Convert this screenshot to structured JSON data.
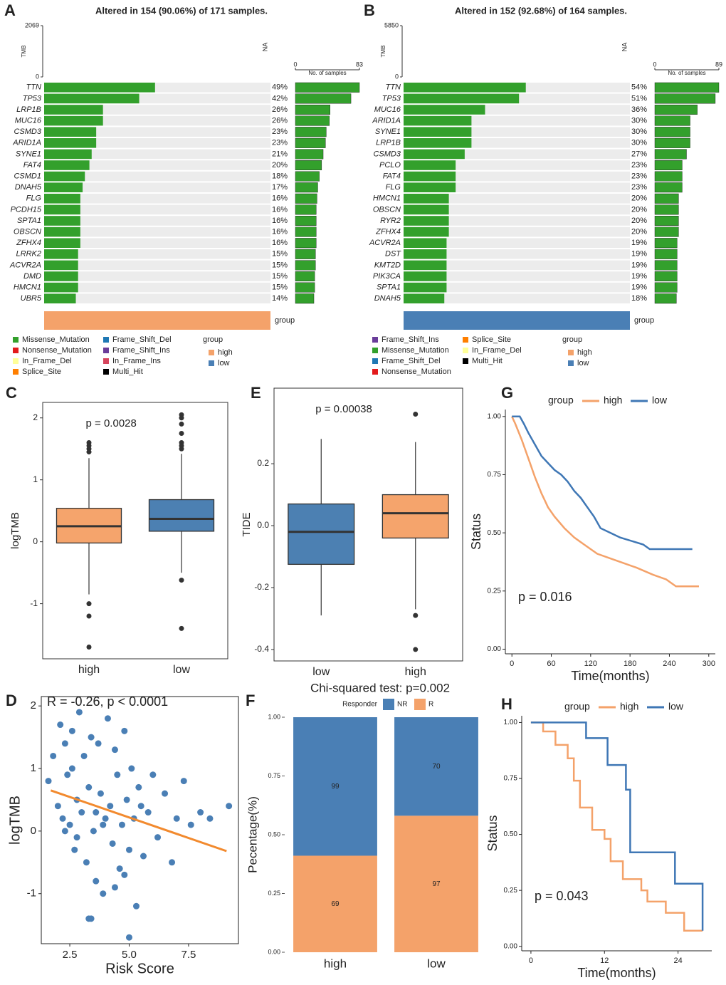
{
  "chart_data": [
    {
      "type": "oncoplot",
      "panel": "A",
      "title": "Altered in 154 (90.06%) of 171 samples.",
      "tmb_label": "TMB",
      "na_label": "NA",
      "ylim": [
        0,
        2069
      ],
      "yticks": [
        0,
        2069
      ],
      "bar_axis_label": "No. of samples",
      "xlim": [
        0,
        83
      ],
      "xticks": [
        0,
        83
      ],
      "genes": [
        "TTN",
        "TP53",
        "LRP1B",
        "MUC16",
        "CSMD3",
        "ARID1A",
        "SYNE1",
        "FAT4",
        "CSMD1",
        "DNAH5",
        "FLG",
        "PCDH15",
        "SPTA1",
        "OBSCN",
        "ZFHX4",
        "LRRK2",
        "ACVR2A",
        "DMD",
        "HMCN1",
        "UBR5"
      ],
      "values": [
        49,
        42,
        26,
        26,
        23,
        23,
        21,
        20,
        18,
        17,
        16,
        16,
        16,
        16,
        16,
        15,
        15,
        15,
        15,
        14
      ],
      "value_labels": [
        "49%",
        "42%",
        "26%",
        "26%",
        "23%",
        "23%",
        "21%",
        "20%",
        "18%",
        "17%",
        "16%",
        "16%",
        "16%",
        "16%",
        "16%",
        "15%",
        "15%",
        "15%",
        "15%",
        "14%"
      ],
      "counts": [
        83,
        72,
        45,
        44,
        40,
        39,
        36,
        34,
        31,
        29,
        28,
        27,
        27,
        27,
        27,
        26,
        26,
        25,
        25,
        24
      ],
      "row_color": "#33a02c",
      "group_bar_label": "group",
      "group_color": "#f4a26a",
      "mutation_legend": [
        {
          "name": "Missense_Mutation",
          "color": "#33a02c"
        },
        {
          "name": "Nonsense_Mutation",
          "color": "#e31a1c"
        },
        {
          "name": "In_Frame_Del",
          "color": "#ffff99"
        },
        {
          "name": "Splice_Site",
          "color": "#ff7f00"
        },
        {
          "name": "Frame_Shift_Del",
          "color": "#1f78b4"
        },
        {
          "name": "Frame_Shift_Ins",
          "color": "#6a3d9a"
        },
        {
          "name": "In_Frame_Ins",
          "color": "#d6455d"
        },
        {
          "name": "Multi_Hit",
          "color": "#000000"
        }
      ],
      "group_legend_title": "group",
      "groups": [
        {
          "name": "high",
          "color": "#f4a26a"
        },
        {
          "name": "low",
          "color": "#4a7fb5"
        }
      ]
    },
    {
      "type": "oncoplot",
      "panel": "B",
      "title": "Altered in 152 (92.68%) of 164 samples.",
      "tmb_label": "TMB",
      "na_label": "NA",
      "ylim": [
        0,
        5850
      ],
      "yticks": [
        0,
        5850
      ],
      "bar_axis_label": "No. of samples",
      "xlim": [
        0,
        89
      ],
      "xticks": [
        0,
        89
      ],
      "genes": [
        "TTN",
        "TP53",
        "MUC16",
        "ARID1A",
        "SYNE1",
        "LRP1B",
        "CSMD3",
        "PCLO",
        "FAT4",
        "FLG",
        "HMCN1",
        "OBSCN",
        "RYR2",
        "ZFHX4",
        "ACVR2A",
        "DST",
        "KMT2D",
        "PIK3CA",
        "SPTA1",
        "DNAH5"
      ],
      "values": [
        54,
        51,
        36,
        30,
        30,
        30,
        27,
        23,
        23,
        23,
        20,
        20,
        20,
        20,
        19,
        19,
        19,
        19,
        19,
        18
      ],
      "value_labels": [
        "54%",
        "51%",
        "36%",
        "30%",
        "30%",
        "30%",
        "27%",
        "23%",
        "23%",
        "23%",
        "20%",
        "20%",
        "20%",
        "20%",
        "19%",
        "19%",
        "19%",
        "19%",
        "19%",
        "18%"
      ],
      "counts": [
        89,
        84,
        59,
        49,
        49,
        49,
        44,
        38,
        38,
        38,
        33,
        33,
        33,
        33,
        31,
        31,
        31,
        31,
        31,
        30
      ],
      "row_color": "#33a02c",
      "group_bar_label": "group",
      "group_color": "#4a7fb5",
      "mutation_legend": [
        {
          "name": "Frame_Shift_Ins",
          "color": "#6a3d9a"
        },
        {
          "name": "Missense_Mutation",
          "color": "#33a02c"
        },
        {
          "name": "Frame_Shift_Del",
          "color": "#1f78b4"
        },
        {
          "name": "Nonsense_Mutation",
          "color": "#e31a1c"
        },
        {
          "name": "Splice_Site",
          "color": "#ff7f00"
        },
        {
          "name": "In_Frame_Del",
          "color": "#ffff99"
        },
        {
          "name": "Multi_Hit",
          "color": "#000000"
        }
      ],
      "group_legend_title": "group",
      "groups": [
        {
          "name": "high",
          "color": "#f4a26a"
        },
        {
          "name": "low",
          "color": "#4a7fb5"
        }
      ]
    },
    {
      "type": "box",
      "panel": "C",
      "annotation": "p = 0.0028",
      "ylabel": "logTMB",
      "categories": [
        "high",
        "low"
      ],
      "colors": [
        "#f5a46c",
        "#4c80b2"
      ],
      "ylim": [
        -1.89,
        2.25
      ],
      "yticks": [
        -1,
        0,
        1,
        2
      ],
      "boxes": [
        {
          "whislo": -0.85,
          "q1": -0.02,
          "med": 0.25,
          "q3": 0.54,
          "whishi": 1.35,
          "fliers": [
            1.6,
            1.55,
            1.5,
            1.45,
            -1.0,
            -1.2,
            -1.7
          ]
        },
        {
          "whislo": -0.5,
          "q1": 0.17,
          "med": 0.37,
          "q3": 0.68,
          "whishi": 1.42,
          "fliers": [
            2.05,
            2.0,
            1.9,
            1.75,
            1.6,
            1.55,
            1.5,
            -0.62,
            -1.4
          ]
        }
      ]
    },
    {
      "type": "box",
      "panel": "E",
      "annotation": "p = 0.00038",
      "ylabel": "TIDE",
      "categories": [
        "low",
        "high"
      ],
      "colors": [
        "#4c80b2",
        "#f5a46c"
      ],
      "ylim": [
        -0.437,
        0.444
      ],
      "yticks": [
        -0.4,
        -0.2,
        {
          "value": 0,
          "label": "0.0"
        },
        0.2
      ],
      "boxes": [
        {
          "whislo": -0.29,
          "q1": -0.125,
          "med": -0.02,
          "q3": 0.07,
          "whishi": 0.28,
          "fliers": []
        },
        {
          "whislo": -0.27,
          "q1": -0.04,
          "med": 0.04,
          "q3": 0.1,
          "whishi": 0.27,
          "fliers": [
            0.36,
            -0.29,
            -0.4
          ]
        }
      ]
    },
    {
      "type": "km",
      "panel": "G",
      "annotation": "p = 0.016",
      "xlabel": "Time(months)",
      "ylabel": "Status",
      "legend_title": "group",
      "xlim": [
        -10,
        310
      ],
      "xticks": [
        0,
        60,
        120,
        180,
        240,
        300
      ],
      "ylim": [
        -0.02,
        1.03
      ],
      "yticks": [
        {
          "value": 0,
          "label": "0.00"
        },
        0.25,
        {
          "value": 0.5,
          "label": "0.50"
        },
        0.75,
        {
          "value": 1,
          "label": "1.00"
        }
      ],
      "series": [
        {
          "name": "high",
          "color": "#f4a26a",
          "x": [
            0,
            5,
            15,
            25,
            35,
            45,
            55,
            65,
            80,
            95,
            110,
            130,
            150,
            170,
            190,
            215,
            235,
            250,
            285
          ],
          "values": [
            1,
            0.97,
            0.9,
            0.82,
            0.74,
            0.67,
            0.61,
            0.57,
            0.52,
            0.48,
            0.45,
            0.41,
            0.39,
            0.37,
            0.35,
            0.32,
            0.3,
            0.27,
            0.27
          ]
        },
        {
          "name": "low",
          "color": "#3f77b5",
          "x": [
            0,
            12,
            18,
            25,
            35,
            45,
            55,
            65,
            75,
            85,
            95,
            105,
            115,
            125,
            135,
            150,
            165,
            200,
            210,
            275
          ],
          "values": [
            1,
            1,
            0.97,
            0.93,
            0.88,
            0.83,
            0.8,
            0.77,
            0.75,
            0.72,
            0.68,
            0.65,
            0.61,
            0.57,
            0.52,
            0.5,
            0.48,
            0.45,
            0.43,
            0.43
          ]
        }
      ]
    },
    {
      "type": "scatter",
      "panel": "D",
      "title": "R = -0.26, p < 0.0001",
      "xlabel": "Risk Score",
      "ylabel": "logTMB",
      "color": "#4a7fb5",
      "fit_color": "#f28a2e",
      "xlim": [
        1.3,
        9.6
      ],
      "xticks": [
        2.5,
        {
          "value": 5,
          "label": "5.0"
        },
        7.5
      ],
      "ylim": [
        -1.8,
        2.15
      ],
      "yticks": [
        -1,
        0,
        1,
        2
      ],
      "x": [
        1.6,
        1.8,
        2.0,
        2.1,
        2.2,
        2.3,
        2.4,
        2.5,
        2.6,
        2.7,
        2.8,
        2.9,
        3.0,
        3.1,
        3.2,
        3.3,
        3.4,
        3.5,
        3.6,
        3.7,
        3.8,
        3.9,
        4.0,
        4.1,
        4.2,
        4.3,
        4.4,
        4.5,
        4.6,
        4.7,
        4.8,
        4.9,
        5.0,
        5.1,
        5.2,
        5.3,
        5.4,
        5.5,
        5.6,
        5.8,
        6.0,
        6.2,
        6.5,
        6.8,
        7.0,
        7.3,
        7.6,
        8.0,
        8.4,
        9.2,
        3.3,
        3.4,
        5.0,
        2.3,
        2.8,
        3.6,
        4.4,
        2.6,
        3.9,
        4.8
      ],
      "values": [
        0.8,
        1.2,
        0.4,
        1.7,
        0.2,
        1.4,
        0.9,
        0.1,
        1.6,
        -0.3,
        0.5,
        1.9,
        0.3,
        1.2,
        -0.5,
        0.7,
        1.5,
        0.0,
        -0.8,
        1.4,
        0.6,
        -1.0,
        0.2,
        1.8,
        0.4,
        -0.2,
        1.3,
        0.9,
        -0.6,
        0.1,
        1.6,
        0.5,
        -0.3,
        1.0,
        0.2,
        -1.2,
        0.7,
        0.4,
        -0.4,
        0.3,
        0.9,
        -0.1,
        0.6,
        -0.5,
        0.2,
        0.8,
        0.1,
        0.3,
        0.2,
        0.4,
        -1.4,
        -1.4,
        -1.7,
        0.0,
        -0.1,
        0.3,
        -0.9,
        1.0,
        0.1,
        -0.7
      ],
      "fit": {
        "x": [
          1.7,
          9.1
        ],
        "values": [
          0.65,
          -0.32
        ]
      }
    },
    {
      "type": "stacked_percent",
      "panel": "F",
      "title": "Chi-squared test: p=0.002",
      "legend_title": "Responder",
      "ylabel": "Pecentage(%)",
      "categories": [
        "high",
        "low"
      ],
      "ylim": [
        0,
        1
      ],
      "yticks": [
        {
          "value": 0,
          "label": "0.00"
        },
        0.25,
        {
          "value": 0.5,
          "label": "0.50"
        },
        0.75,
        {
          "value": 1,
          "label": "1.00"
        }
      ],
      "series": [
        {
          "name": "NR",
          "color": "#4a7fb5",
          "values": [
            99,
            70
          ]
        },
        {
          "name": "R",
          "color": "#f4a26a",
          "values": [
            69,
            97
          ]
        }
      ]
    },
    {
      "type": "km",
      "panel": "H",
      "annotation": "p = 0.043",
      "xlabel": "Time(months)",
      "ylabel": "Status",
      "legend_title": "group",
      "xlim": [
        -1.5,
        29.5
      ],
      "xticks": [
        0,
        12,
        24
      ],
      "ylim": [
        -0.02,
        1.03
      ],
      "yticks": [
        {
          "value": 0,
          "label": "0.00"
        },
        0.25,
        {
          "value": 0.5,
          "label": "0.50"
        },
        0.75,
        {
          "value": 1,
          "label": "1.00"
        }
      ],
      "series": [
        {
          "name": "high",
          "color": "#f4a26a",
          "x": [
            0,
            2,
            2,
            4,
            4,
            6,
            6,
            7,
            7,
            8,
            8,
            10,
            10,
            12,
            12,
            13,
            13,
            15,
            15,
            18,
            18,
            19,
            19,
            22,
            22,
            25,
            25,
            28
          ],
          "values": [
            1,
            1,
            0.96,
            0.96,
            0.9,
            0.9,
            0.84,
            0.84,
            0.74,
            0.74,
            0.62,
            0.62,
            0.52,
            0.52,
            0.48,
            0.48,
            0.38,
            0.38,
            0.3,
            0.3,
            0.25,
            0.25,
            0.2,
            0.2,
            0.15,
            0.15,
            0.07,
            0.07
          ]
        },
        {
          "name": "low",
          "color": "#3f77b5",
          "x": [
            0,
            9,
            9,
            12.5,
            12.5,
            15.5,
            15.5,
            16.2,
            16.2,
            23.5,
            23.5,
            28,
            28
          ],
          "values": [
            1,
            1,
            0.93,
            0.93,
            0.81,
            0.81,
            0.7,
            0.7,
            0.42,
            0.42,
            0.28,
            0.28,
            0.07
          ]
        }
      ]
    }
  ]
}
